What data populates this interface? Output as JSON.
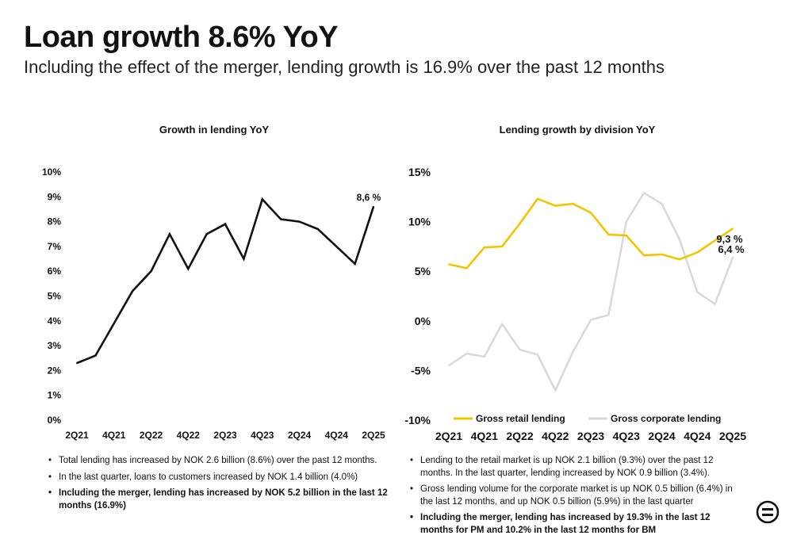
{
  "header": {
    "title": "Loan growth 8.6% YoY",
    "subtitle": "Including the effect of the merger, lending growth is 16.9% over the past 12 months"
  },
  "colors": {
    "line_total": "#111111",
    "retail": "#F5C400",
    "corporate": "#D9D9D9"
  },
  "left_chart": {
    "title": "Growth in lending YoY",
    "end_label": "8,6 %",
    "legend_position": "none"
  },
  "right_chart": {
    "title": "Lending growth by division YoY",
    "retail_end_label": "9,3 %",
    "corporate_end_label": "6,4 %",
    "legend_position": "bottom"
  },
  "chart_data": [
    {
      "type": "line",
      "title": "Growth in lending YoY",
      "xlabel": "",
      "ylabel": "",
      "x": [
        "2Q21",
        "3Q21",
        "4Q21",
        "1Q22",
        "2Q22",
        "3Q22",
        "4Q22",
        "1Q23",
        "2Q23",
        "3Q23",
        "4Q23",
        "1Q24",
        "2Q24",
        "3Q24",
        "4Q24",
        "1Q25",
        "2Q25"
      ],
      "x_tick_labels": [
        "2Q21",
        "4Q21",
        "2Q22",
        "4Q22",
        "2Q23",
        "4Q23",
        "2Q24",
        "4Q24",
        "2Q25"
      ],
      "y_tick_labels": [
        "0%",
        "1%",
        "2%",
        "3%",
        "4%",
        "5%",
        "6%",
        "7%",
        "8%",
        "9%",
        "10%"
      ],
      "ylim": [
        0,
        10
      ],
      "grid": false,
      "series": [
        {
          "values": [
            2.3,
            2.6,
            3.9,
            5.2,
            6.0,
            7.5,
            6.1,
            7.5,
            7.9,
            6.5,
            8.9,
            8.1,
            8.0,
            7.7,
            7.0,
            6.3,
            8.6
          ]
        }
      ]
    },
    {
      "type": "line",
      "title": "Lending growth by division YoY",
      "xlabel": "",
      "ylabel": "",
      "x": [
        "2Q21",
        "3Q21",
        "4Q21",
        "1Q22",
        "2Q22",
        "3Q22",
        "4Q22",
        "1Q23",
        "2Q23",
        "3Q23",
        "4Q23",
        "1Q24",
        "2Q24",
        "3Q24",
        "4Q24",
        "1Q25",
        "2Q25"
      ],
      "x_tick_labels": [
        "2Q21",
        "4Q21",
        "2Q22",
        "4Q22",
        "2Q23",
        "4Q23",
        "2Q24",
        "4Q24",
        "2Q25"
      ],
      "y_tick_labels": [
        "-10%",
        "-5%",
        "0%",
        "5%",
        "10%",
        "15%"
      ],
      "ylim": [
        -10,
        15
      ],
      "grid": false,
      "series": [
        {
          "name": "Gross retail lending",
          "values": [
            5.7,
            5.3,
            7.4,
            7.5,
            9.8,
            12.3,
            11.6,
            11.8,
            10.9,
            8.7,
            8.6,
            6.6,
            6.7,
            6.2,
            6.9,
            8.1,
            9.3
          ]
        },
        {
          "name": "Gross corporate lending",
          "values": [
            -4.5,
            -3.3,
            -3.6,
            -0.3,
            -2.9,
            -3.4,
            -7.0,
            -3.1,
            0.1,
            0.6,
            10.0,
            12.9,
            11.8,
            8.2,
            2.9,
            1.7,
            6.4
          ]
        }
      ]
    }
  ],
  "bullets_left": [
    "Total lending has increased by NOK 2.6 billion (8.6%) over the past 12 months.",
    "In the last quarter, loans to customers increased by NOK 1.4 billion (4.0%)",
    "Including the merger, lending has increased by NOK 5.2 billion in the last 12 months (16.9%)"
  ],
  "bullets_right": [
    "Lending to the retail market is up NOK 2.1 billion (9.3%) over the past 12 months. In the last quarter, lending increased by NOK 0.9 billion (3.4%).",
    "Gross lending volume for the corporate market is up NOK 0.5 billion (6.4%) in the last 12 months, and up NOK 0.5 billion (5.9%) in the last quarter",
    "Including the merger, lending has increased by 19.3% in the last 12 months for PM and 10.2% in the last 12 months for BM"
  ],
  "logo": {
    "icon": "equals-circle-logo-icon"
  }
}
